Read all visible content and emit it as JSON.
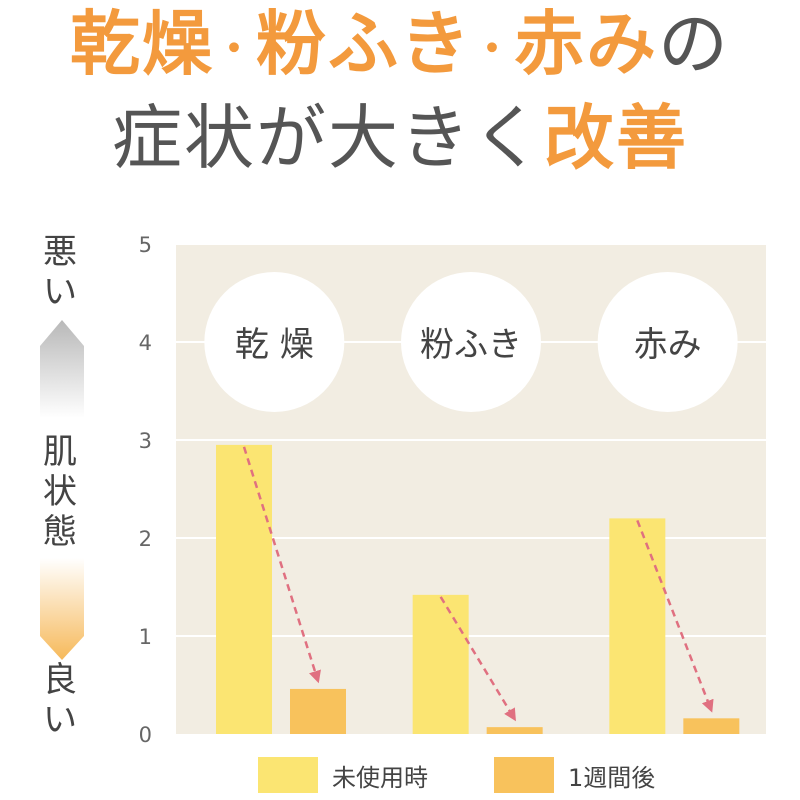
{
  "title": {
    "line1": [
      "乾燥",
      "粉ふき",
      "赤み",
      "の"
    ],
    "line1_sep": "・",
    "line2_plain": "症状が大きく",
    "line2_accent": "改善"
  },
  "scale": {
    "top": "悪い",
    "middle": "肌状態",
    "bottom": "良い"
  },
  "colors": {
    "accent": "#f39a3d",
    "before": "#fbe572",
    "after": "#f8c25c",
    "arrow": "#e07080",
    "plot_bg": "#f2ede2"
  },
  "chart_data": {
    "type": "bar",
    "categories": [
      "乾 燥",
      "粉ふき",
      "赤み"
    ],
    "series": [
      {
        "name": "未使用時",
        "values": [
          2.95,
          1.42,
          2.2
        ]
      },
      {
        "name": "1週間後",
        "values": [
          0.46,
          0.07,
          0.16
        ]
      }
    ],
    "ylim": [
      0,
      5
    ],
    "yticks": [
      "0",
      "1",
      "2",
      "3",
      "4",
      "5"
    ],
    "grid": true,
    "legend": "bottom"
  }
}
